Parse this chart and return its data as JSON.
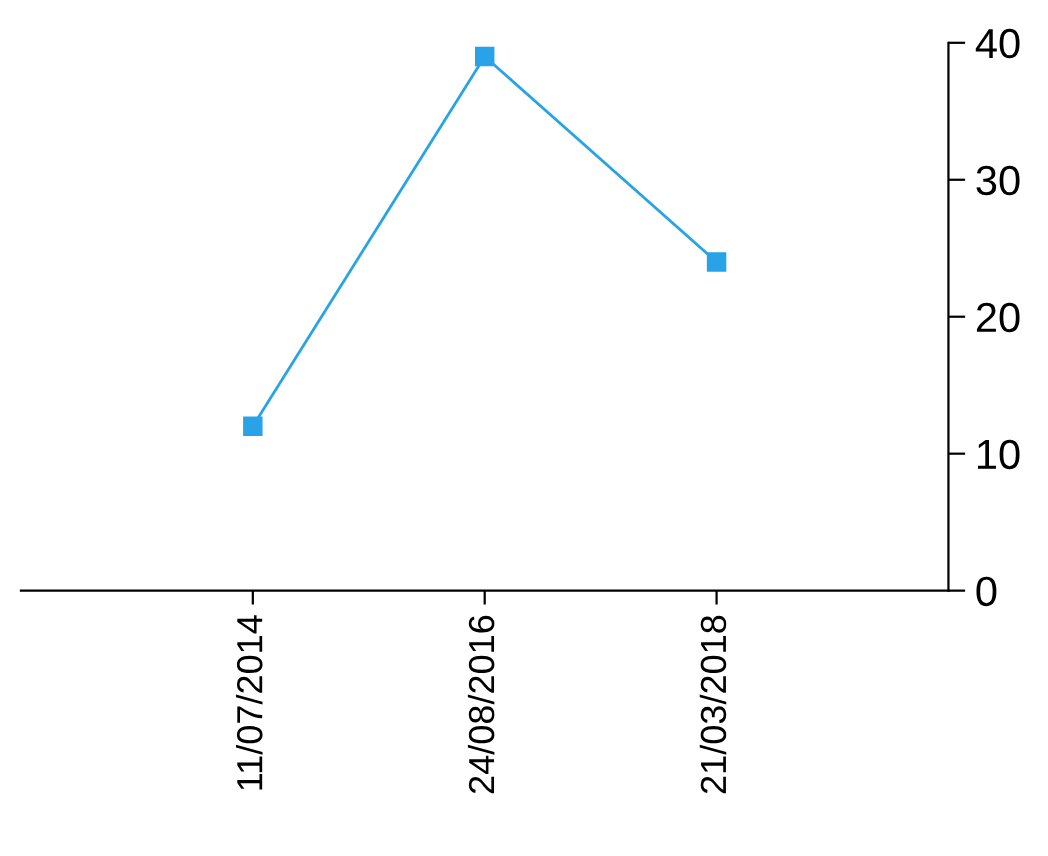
{
  "chart_data": {
    "type": "line",
    "categories": [
      "11/07/2014",
      "24/08/2016",
      "21/03/2018"
    ],
    "series": [
      {
        "color": "#29a3e8",
        "values": [
          12,
          39,
          24
        ]
      }
    ],
    "ylim": [
      0,
      40
    ],
    "yticks": [
      0,
      10,
      20,
      30,
      40
    ],
    "grid": false,
    "legend": false,
    "marker": "square",
    "line_style": "solid"
  }
}
